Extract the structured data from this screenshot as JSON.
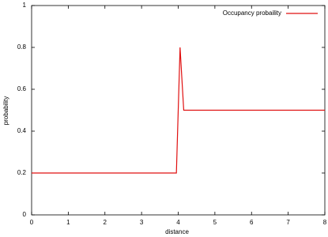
{
  "chart_data": {
    "type": "line",
    "x_label": "distance",
    "y_label": "probability",
    "x": [
      0,
      3.95,
      4.05,
      4.15,
      8
    ],
    "series": [
      {
        "name": "Occupancy probaility",
        "color": "#e01010",
        "values": [
          0.2,
          0.2,
          0.8,
          0.5,
          0.5
        ]
      }
    ],
    "xlim": [
      0,
      8
    ],
    "xticks": [
      0,
      1,
      2,
      3,
      4,
      5,
      6,
      7,
      8
    ],
    "ylim": [
      0,
      1
    ],
    "yticks": [
      0,
      0.2,
      0.4,
      0.6,
      0.8,
      1
    ],
    "grid": false,
    "legend": "top-right"
  }
}
